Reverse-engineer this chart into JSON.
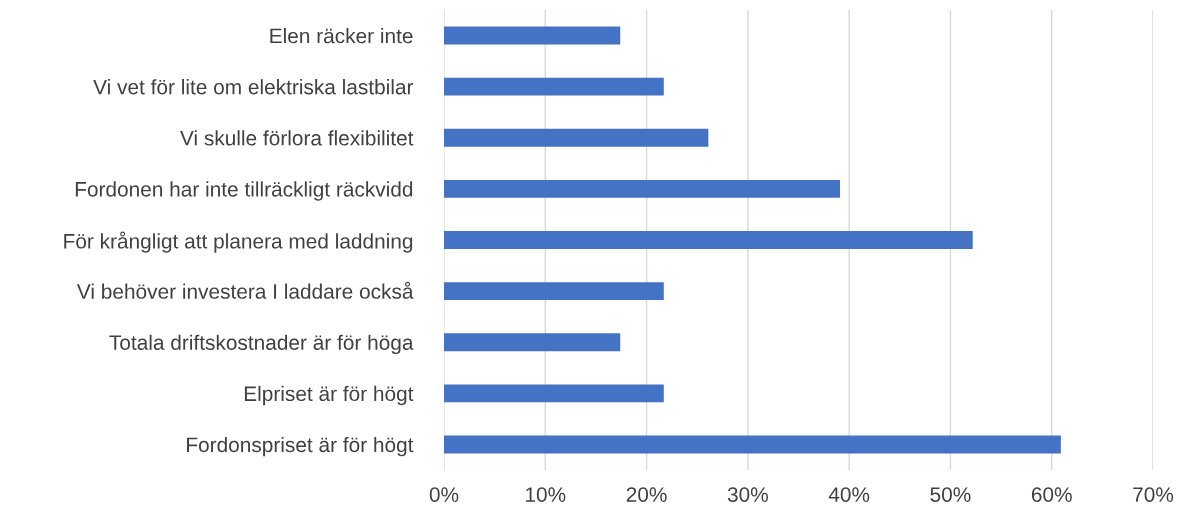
{
  "chart_data": {
    "type": "bar",
    "orientation": "horizontal",
    "categories": [
      "Elen räcker inte",
      "Vi vet för lite om elektriska lastbilar",
      "Vi skulle förlora flexibilitet",
      "Fordonen har inte tillräckligt räckvidd",
      "För krångligt att planera med laddning",
      "Vi behöver investera I laddare också",
      "Totala driftskostnader är för höga",
      "Elpriset är för högt",
      "Fordonspriset är för högt"
    ],
    "values": [
      17.4,
      21.7,
      26.1,
      39.1,
      52.2,
      21.7,
      17.4,
      21.7,
      60.9
    ],
    "color": "#4472c4",
    "xlim": [
      0,
      70
    ],
    "xticks": [
      {
        "value": 0,
        "label": "0%"
      },
      {
        "value": 10,
        "label": "10%"
      },
      {
        "value": 20,
        "label": "20%"
      },
      {
        "value": 30,
        "label": "30%"
      },
      {
        "value": 40,
        "label": "40%"
      },
      {
        "value": 50,
        "label": "50%"
      },
      {
        "value": 60,
        "label": "60%"
      },
      {
        "value": 70,
        "label": "70%"
      }
    ],
    "grid": "x",
    "legend": false
  }
}
